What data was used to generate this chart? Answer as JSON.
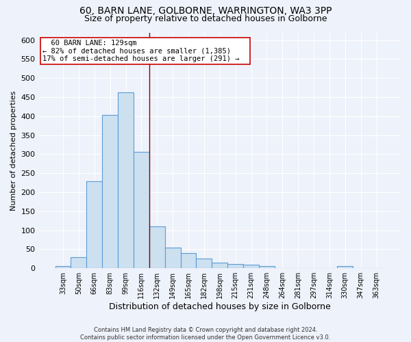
{
  "title1": "60, BARN LANE, GOLBORNE, WARRINGTON, WA3 3PP",
  "title2": "Size of property relative to detached houses in Golborne",
  "xlabel": "Distribution of detached houses by size in Golborne",
  "ylabel": "Number of detached properties",
  "bar_labels": [
    "33sqm",
    "50sqm",
    "66sqm",
    "83sqm",
    "99sqm",
    "116sqm",
    "132sqm",
    "149sqm",
    "165sqm",
    "182sqm",
    "198sqm",
    "215sqm",
    "231sqm",
    "248sqm",
    "264sqm",
    "281sqm",
    "297sqm",
    "314sqm",
    "330sqm",
    "347sqm",
    "363sqm"
  ],
  "bar_values": [
    6,
    30,
    228,
    403,
    463,
    307,
    110,
    54,
    40,
    26,
    15,
    12,
    10,
    6,
    0,
    0,
    0,
    0,
    5,
    0,
    0
  ],
  "bar_color": "#cce0f0",
  "bar_edge_color": "#5b9bd5",
  "property_line_x": 5.5,
  "property_line_label": "60 BARN LANE: 129sqm",
  "annotation_line1": "← 82% of detached houses are smaller (1,385)",
  "annotation_line2": "17% of semi-detached houses are larger (291) →",
  "vline_color": "#8b0000",
  "annotation_box_color": "#ffffff",
  "annotation_box_edge": "#cc0000",
  "ylim": [
    0,
    620
  ],
  "yticks": [
    0,
    50,
    100,
    150,
    200,
    250,
    300,
    350,
    400,
    450,
    500,
    550,
    600
  ],
  "footer1": "Contains HM Land Registry data © Crown copyright and database right 2024.",
  "footer2": "Contains public sector information licensed under the Open Government Licence v3.0.",
  "bg_color": "#eef2fa",
  "grid_color": "#ffffff",
  "title1_fontsize": 10,
  "title2_fontsize": 9
}
